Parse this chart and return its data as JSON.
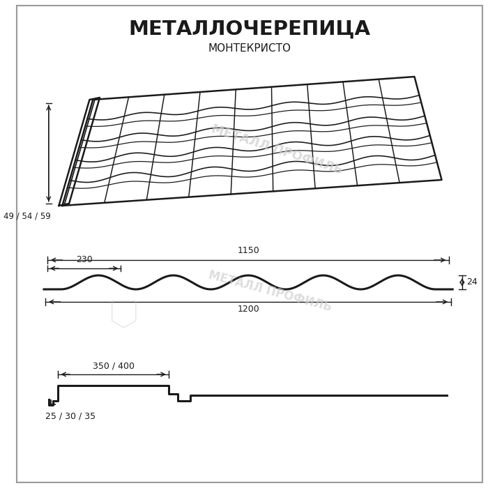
{
  "title_main": "МЕТАЛЛОЧЕРЕПИЦА",
  "title_sub": "МОНТЕКРИСТО",
  "bg_color": "#ffffff",
  "line_color": "#1a1a1a",
  "watermark_text1": "МЕТАЛЛ ПРОФИЛЬ",
  "watermark_text2": "МЕТАЛЛ ПРОФИЛЬ",
  "label_49_54_59": "49 / 54 / 59",
  "label_1150": "1150",
  "label_230": "230",
  "label_24": "24",
  "label_1200": "1200",
  "label_350_400": "350 / 400",
  "label_25_30_35": "25 / 30 / 35",
  "border_color": "#aaaaaa"
}
